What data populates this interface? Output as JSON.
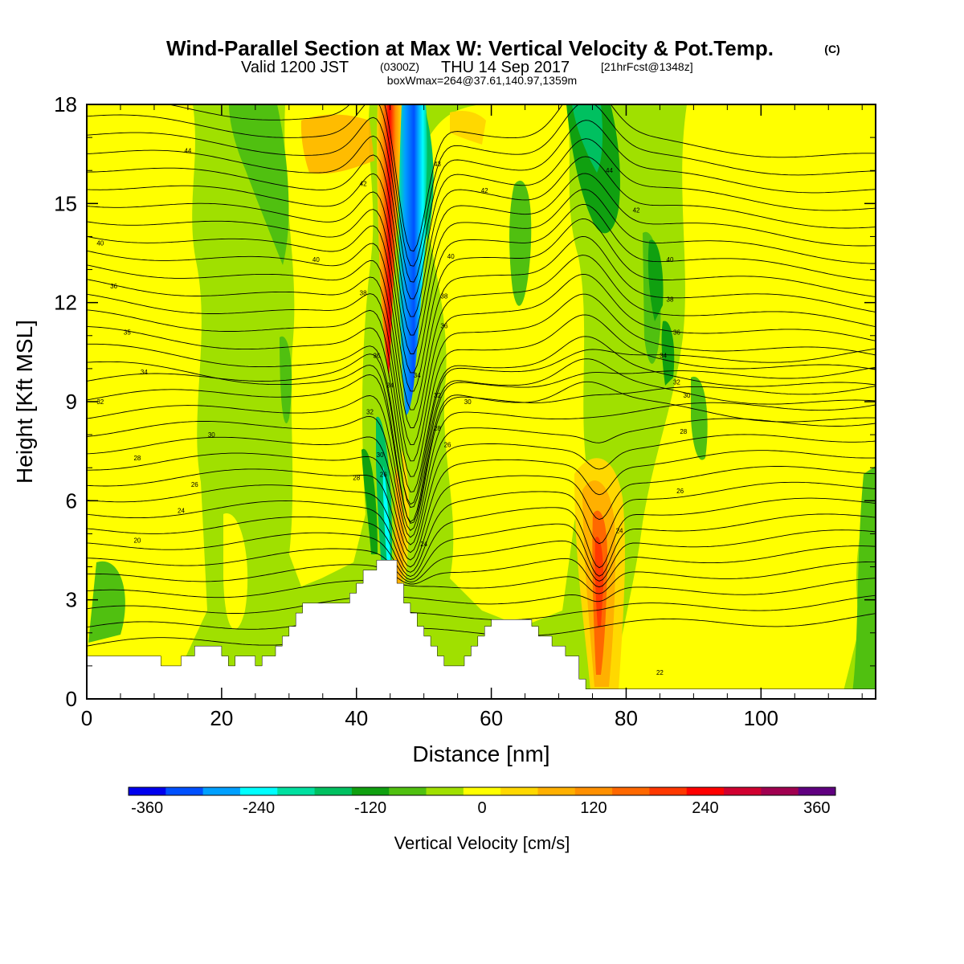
{
  "chart_data": {
    "type": "heatmap",
    "title": "Wind-Parallel Section at Max W: Vertical Velocity & Pot.Temp.",
    "title_mark": "(C)",
    "subtitle": {
      "valid": "Valid 1200 JST",
      "zulu": "(0300Z)",
      "date": "THU 14 Sep 2017",
      "forecast": "[21hrFcst@1348z]"
    },
    "box_note": "boxWmax=264@37.61,140.97,1359m",
    "xlabel": "Distance [nm]",
    "ylabel": "Height [Kft MSL]",
    "xlim": [
      0,
      117
    ],
    "ylim": [
      0,
      18
    ],
    "x_ticks": [
      0,
      20,
      40,
      60,
      80,
      100
    ],
    "y_ticks": [
      0,
      3,
      6,
      9,
      12,
      15,
      18
    ],
    "colorbar": {
      "title": "Vertical Velocity [cm/s]",
      "range": [
        -380,
        380
      ],
      "tick_values": [
        -360,
        -240,
        -120,
        0,
        120,
        240,
        360
      ],
      "colors": [
        "#0000ee",
        "#0050ff",
        "#00a0ff",
        "#00ffff",
        "#00e0a0",
        "#00c060",
        "#10a010",
        "#50c010",
        "#a0e000",
        "#ffff00",
        "#ffd800",
        "#ffb000",
        "#ff9000",
        "#ff6800",
        "#ff3800",
        "#ff0000",
        "#d00030",
        "#a00050",
        "#600080"
      ]
    },
    "terrain": [
      [
        0,
        1.3
      ],
      [
        11,
        1.3
      ],
      [
        11,
        1.0
      ],
      [
        14,
        1.0
      ],
      [
        14,
        1.3
      ],
      [
        16,
        1.3
      ],
      [
        16,
        1.6
      ],
      [
        20,
        1.6
      ],
      [
        20,
        1.3
      ],
      [
        21,
        1.3
      ],
      [
        21,
        1.0
      ],
      [
        22,
        1.0
      ],
      [
        22,
        1.3
      ],
      [
        25,
        1.3
      ],
      [
        25,
        1.0
      ],
      [
        26,
        1.0
      ],
      [
        26,
        1.3
      ],
      [
        28,
        1.3
      ],
      [
        28,
        1.6
      ],
      [
        29,
        1.6
      ],
      [
        29,
        1.9
      ],
      [
        30,
        1.9
      ],
      [
        30,
        2.2
      ],
      [
        31,
        2.2
      ],
      [
        31,
        2.6
      ],
      [
        32,
        2.6
      ],
      [
        32,
        2.9
      ],
      [
        39,
        2.9
      ],
      [
        39,
        3.2
      ],
      [
        40,
        3.2
      ],
      [
        40,
        3.5
      ],
      [
        41,
        3.5
      ],
      [
        41,
        3.9
      ],
      [
        43,
        3.9
      ],
      [
        43,
        4.2
      ],
      [
        46,
        4.2
      ],
      [
        46,
        3.5
      ],
      [
        47,
        3.5
      ],
      [
        47,
        2.9
      ],
      [
        48,
        2.9
      ],
      [
        48,
        2.6
      ],
      [
        49,
        2.6
      ],
      [
        49,
        2.2
      ],
      [
        50,
        2.2
      ],
      [
        50,
        1.9
      ],
      [
        51,
        1.9
      ],
      [
        51,
        1.6
      ],
      [
        52,
        1.6
      ],
      [
        52,
        1.3
      ],
      [
        53,
        1.3
      ],
      [
        53,
        1.0
      ],
      [
        56,
        1.0
      ],
      [
        56,
        1.3
      ],
      [
        57,
        1.3
      ],
      [
        57,
        1.6
      ],
      [
        58,
        1.6
      ],
      [
        58,
        1.9
      ],
      [
        59,
        1.9
      ],
      [
        59,
        2.2
      ],
      [
        60,
        2.2
      ],
      [
        60,
        2.4
      ],
      [
        66,
        2.4
      ],
      [
        66,
        2.2
      ],
      [
        67,
        2.2
      ],
      [
        67,
        1.9
      ],
      [
        69,
        1.9
      ],
      [
        69,
        1.6
      ],
      [
        71,
        1.6
      ],
      [
        71,
        1.3
      ],
      [
        73,
        1.3
      ],
      [
        73,
        0.6
      ],
      [
        74,
        0.6
      ],
      [
        74,
        0.3
      ],
      [
        117,
        0.3
      ]
    ],
    "contour_labels": [
      {
        "x": 15,
        "y": 16.6,
        "text": "44"
      },
      {
        "x": 2,
        "y": 13.8,
        "text": "40"
      },
      {
        "x": 4,
        "y": 12.5,
        "text": "36"
      },
      {
        "x": 6,
        "y": 11.1,
        "text": "35"
      },
      {
        "x": 8.5,
        "y": 9.9,
        "text": "34"
      },
      {
        "x": 2,
        "y": 9.0,
        "text": "32"
      },
      {
        "x": 18.5,
        "y": 8.0,
        "text": "30"
      },
      {
        "x": 7.5,
        "y": 7.3,
        "text": "28"
      },
      {
        "x": 16,
        "y": 6.5,
        "text": "26"
      },
      {
        "x": 14,
        "y": 5.7,
        "text": "24"
      },
      {
        "x": 7.5,
        "y": 4.8,
        "text": "20"
      },
      {
        "x": 41,
        "y": 15.6,
        "text": "42"
      },
      {
        "x": 34,
        "y": 13.3,
        "text": "40"
      },
      {
        "x": 41,
        "y": 12.3,
        "text": "38"
      },
      {
        "x": 43,
        "y": 10.4,
        "text": "36"
      },
      {
        "x": 45,
        "y": 9.5,
        "text": "34"
      },
      {
        "x": 42,
        "y": 8.7,
        "text": "32"
      },
      {
        "x": 43.5,
        "y": 7.4,
        "text": "30"
      },
      {
        "x": 40,
        "y": 6.7,
        "text": "28"
      },
      {
        "x": 44,
        "y": 6.8,
        "text": "26"
      },
      {
        "x": 52,
        "y": 16.2,
        "text": "43"
      },
      {
        "x": 59,
        "y": 15.4,
        "text": "42"
      },
      {
        "x": 54,
        "y": 13.4,
        "text": "40"
      },
      {
        "x": 53,
        "y": 12.2,
        "text": "38"
      },
      {
        "x": 53,
        "y": 11.3,
        "text": "36"
      },
      {
        "x": 49,
        "y": 9.8,
        "text": "34"
      },
      {
        "x": 52,
        "y": 9.2,
        "text": "32"
      },
      {
        "x": 56.5,
        "y": 9.0,
        "text": "30"
      },
      {
        "x": 52,
        "y": 8.2,
        "text": "28"
      },
      {
        "x": 53.5,
        "y": 7.7,
        "text": "26"
      },
      {
        "x": 50,
        "y": 4.7,
        "text": "24"
      },
      {
        "x": 77.5,
        "y": 16.0,
        "text": "44"
      },
      {
        "x": 81.5,
        "y": 14.8,
        "text": "42"
      },
      {
        "x": 86.5,
        "y": 13.3,
        "text": "40"
      },
      {
        "x": 86.5,
        "y": 12.1,
        "text": "38"
      },
      {
        "x": 87.5,
        "y": 11.1,
        "text": "36"
      },
      {
        "x": 85.5,
        "y": 10.4,
        "text": "34"
      },
      {
        "x": 87.5,
        "y": 9.6,
        "text": "32"
      },
      {
        "x": 89,
        "y": 9.2,
        "text": "30"
      },
      {
        "x": 88.5,
        "y": 8.1,
        "text": "28"
      },
      {
        "x": 88,
        "y": 6.3,
        "text": "26"
      },
      {
        "x": 79,
        "y": 5.1,
        "text": "24"
      },
      {
        "x": 85,
        "y": 0.8,
        "text": "22"
      }
    ]
  }
}
